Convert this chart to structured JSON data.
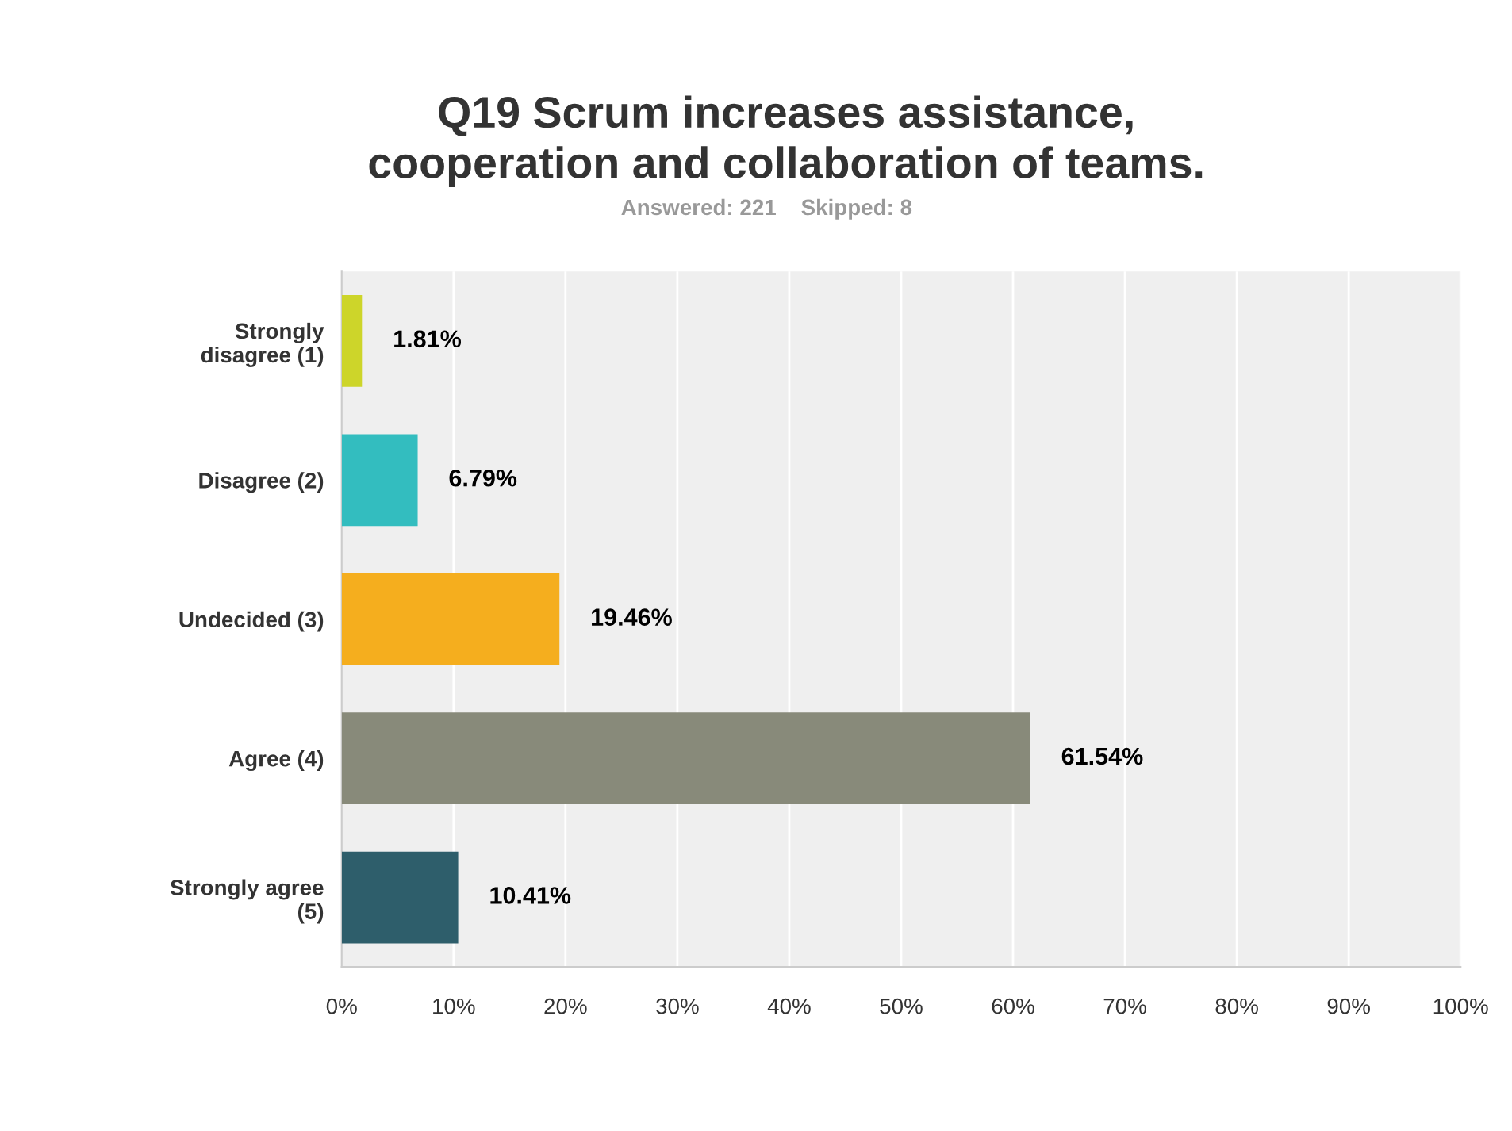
{
  "chart_data": {
    "type": "bar",
    "orientation": "horizontal",
    "title": "Q19 Scrum increases assistance,\ncooperation and collaboration of teams.",
    "subtitle": "Answered: 221    Skipped: 8",
    "categories": [
      "Strongly\ndisagree (1)",
      "Disagree (2)",
      "Undecided (3)",
      "Agree (4)",
      "Strongly agree\n(5)"
    ],
    "values": [
      1.81,
      6.79,
      19.46,
      61.54,
      10.41
    ],
    "colors": [
      "#cdd52a",
      "#33bdbf",
      "#f5ae1e",
      "#888a7a",
      "#2e5e6b"
    ],
    "value_labels": [
      "1.81%",
      "6.79%",
      "19.46%",
      "61.54%",
      "10.41%"
    ],
    "xlim": [
      0,
      100
    ],
    "xticks": [
      {
        "value": 0,
        "label": "0%"
      },
      {
        "value": 10,
        "label": "10%"
      },
      {
        "value": 20,
        "label": "20%"
      },
      {
        "value": 30,
        "label": "30%"
      },
      {
        "value": 40,
        "label": "40%"
      },
      {
        "value": 50,
        "label": "50%"
      },
      {
        "value": 60,
        "label": "60%"
      },
      {
        "value": 70,
        "label": "70%"
      },
      {
        "value": 80,
        "label": "80%"
      },
      {
        "value": 90,
        "label": "90%"
      },
      {
        "value": 100,
        "label": "100%"
      }
    ],
    "grid": "x",
    "legend": false
  }
}
